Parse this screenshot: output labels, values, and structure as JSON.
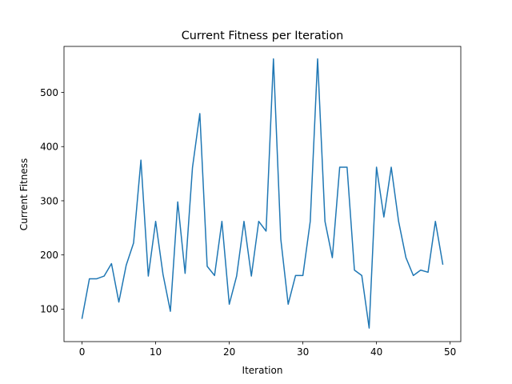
{
  "chart_data": {
    "type": "line",
    "title": "Current Fitness per Iteration",
    "xlabel": "Iteration",
    "ylabel": "Current Fitness",
    "xlim": [
      -2.45,
      51.45
    ],
    "ylim": [
      40,
      585
    ],
    "xticks": [
      0,
      10,
      20,
      30,
      40,
      50
    ],
    "yticks": [
      100,
      200,
      300,
      400,
      500
    ],
    "grid": false,
    "color": "#1f77b4",
    "x": [
      0,
      1,
      2,
      3,
      4,
      5,
      6,
      7,
      8,
      9,
      10,
      11,
      12,
      13,
      14,
      15,
      16,
      17,
      18,
      19,
      20,
      21,
      22,
      23,
      24,
      25,
      26,
      27,
      28,
      29,
      30,
      31,
      32,
      33,
      34,
      35,
      36,
      37,
      38,
      39,
      40,
      41,
      42,
      43,
      44,
      45,
      46,
      47,
      48,
      49
    ],
    "y": [
      83,
      156,
      156,
      161,
      184,
      113,
      181,
      222,
      375,
      161,
      262,
      164,
      96,
      298,
      166,
      361,
      461,
      179,
      162,
      262,
      109,
      161,
      262,
      161,
      262,
      244,
      562,
      229,
      109,
      162,
      162,
      262,
      562,
      262,
      195,
      362,
      362,
      172,
      162,
      65,
      362,
      270,
      362,
      262,
      195,
      162,
      172,
      168,
      262,
      183
    ]
  }
}
